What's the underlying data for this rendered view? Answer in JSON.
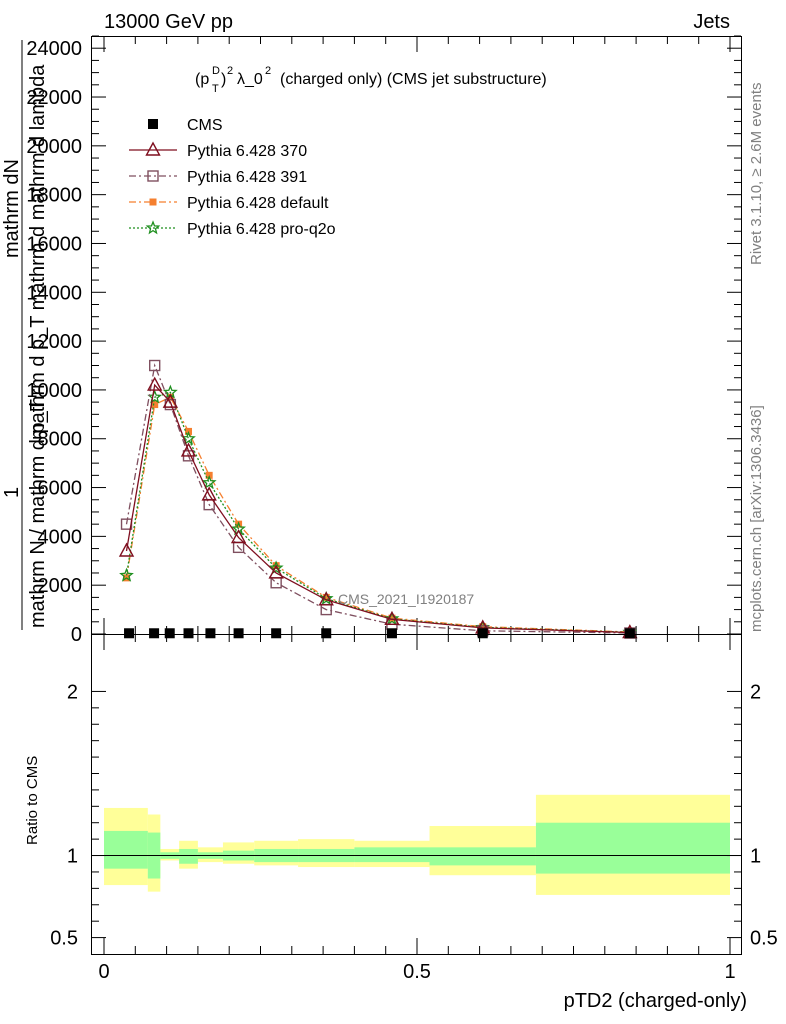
{
  "header": {
    "left": "13000 GeV pp",
    "right": "Jets"
  },
  "title_main": "(charged only) (CMS jet substructure)",
  "side_labels": {
    "rivet": "Rivet 3.1.10, ≥ 2.6M events",
    "mcplots": "mcplots.cern.ch [arXiv:1306.3436]"
  },
  "watermark": "CMS_2021_I1920187",
  "ylabel_main": {
    "numerator": "mathrm dN",
    "denominator": "mathrm d p_T mathrm d mathrm d lambda",
    "prefix": "1",
    "prefix_denominator": "mathrm N / mathrm d p_T",
    "fragments": [
      "mathrm d^2N",
      "mathrm d p_T mathrm d lambda"
    ]
  },
  "xlabel": "pTD2 (charged-only)",
  "ylabel_ratio": "Ratio to CMS",
  "colors": {
    "p370": "#7f0f1f",
    "p391": "#7f4f5f",
    "default": "#f57f2f",
    "proq2o": "#1f8f1f",
    "band_inner": "#99ff99",
    "band_outer": "#ffff99"
  },
  "chart_data": [
    {
      "type": "line",
      "panel": "main",
      "x_range": [
        0,
        1
      ],
      "ylim": [
        0,
        24500
      ],
      "y_ticks": [
        0,
        2000,
        4000,
        6000,
        8000,
        10000,
        12000,
        14000,
        16000,
        18000,
        20000,
        22000,
        24000
      ],
      "y_tick_labels": [
        "0",
        "2000",
        "4000",
        "6000",
        "8000",
        "10000",
        "12000",
        "14000",
        "16000",
        "18000",
        "20000",
        "22000",
        "24000"
      ],
      "legend_position": "top-left",
      "legend": [
        "CMS",
        "Pythia 6.428 370",
        "Pythia 6.428 391",
        "Pythia 6.428 default",
        "Pythia 6.428 pro-q2o"
      ],
      "cms_x": [
        0.04,
        0.08,
        0.105,
        0.135,
        0.17,
        0.215,
        0.275,
        0.355,
        0.46,
        0.605,
        0.84
      ],
      "cms_values": [
        30,
        30,
        30,
        30,
        30,
        30,
        30,
        30,
        30,
        30,
        30
      ],
      "series": [
        {
          "name": "Pythia 6.428 370",
          "x": [
            0.036,
            0.081,
            0.106,
            0.135,
            0.168,
            0.215,
            0.275,
            0.355,
            0.46,
            0.605,
            0.84
          ],
          "values": [
            3400,
            10200,
            9500,
            7500,
            5700,
            3950,
            2500,
            1400,
            600,
            250,
            60
          ]
        },
        {
          "name": "Pythia 6.428 391",
          "x": [
            0.036,
            0.081,
            0.106,
            0.135,
            0.168,
            0.215,
            0.275,
            0.355,
            0.46,
            0.605,
            0.84
          ],
          "values": [
            4500,
            11000,
            9400,
            7300,
            5300,
            3550,
            2100,
            1000,
            400,
            130,
            40
          ]
        },
        {
          "name": "Pythia 6.428 default",
          "x": [
            0.036,
            0.081,
            0.106,
            0.135,
            0.168,
            0.215,
            0.275,
            0.355,
            0.46,
            0.605,
            0.84
          ],
          "values": [
            2300,
            9400,
            9700,
            8300,
            6500,
            4500,
            2800,
            1500,
            650,
            300,
            80
          ]
        },
        {
          "name": "Pythia 6.428 pro-q2o",
          "x": [
            0.036,
            0.081,
            0.106,
            0.135,
            0.168,
            0.215,
            0.275,
            0.355,
            0.46,
            0.605,
            0.84
          ],
          "values": [
            2400,
            9700,
            9900,
            8000,
            6200,
            4300,
            2700,
            1450,
            620,
            270,
            70
          ]
        }
      ]
    },
    {
      "type": "area",
      "panel": "ratio",
      "x_range": [
        0,
        1
      ],
      "ylim": [
        0.4,
        2.35
      ],
      "y_ticks": [
        0.5,
        1,
        2
      ],
      "y_tick_labels": [
        "0.5",
        "1",
        "2"
      ],
      "x_ticks": [
        0,
        0.5,
        1
      ],
      "x_tick_labels": [
        "0",
        "0.5",
        "1"
      ],
      "bins": [
        {
          "x0": 0.0,
          "x1": 0.07,
          "inner": [
            0.92,
            1.15
          ],
          "outer": [
            0.82,
            1.29
          ]
        },
        {
          "x0": 0.07,
          "x1": 0.09,
          "inner": [
            0.86,
            1.14
          ],
          "outer": [
            0.78,
            1.25
          ]
        },
        {
          "x0": 0.09,
          "x1": 0.12,
          "inner": [
            0.98,
            1.02
          ],
          "outer": [
            0.97,
            1.04
          ]
        },
        {
          "x0": 0.12,
          "x1": 0.15,
          "inner": [
            0.95,
            1.04
          ],
          "outer": [
            0.92,
            1.09
          ]
        },
        {
          "x0": 0.15,
          "x1": 0.19,
          "inner": [
            0.98,
            1.02
          ],
          "outer": [
            0.96,
            1.05
          ]
        },
        {
          "x0": 0.19,
          "x1": 0.24,
          "inner": [
            0.97,
            1.03
          ],
          "outer": [
            0.95,
            1.08
          ]
        },
        {
          "x0": 0.24,
          "x1": 0.31,
          "inner": [
            0.96,
            1.04
          ],
          "outer": [
            0.94,
            1.09
          ]
        },
        {
          "x0": 0.31,
          "x1": 0.4,
          "inner": [
            0.96,
            1.04
          ],
          "outer": [
            0.93,
            1.1
          ]
        },
        {
          "x0": 0.4,
          "x1": 0.52,
          "inner": [
            0.96,
            1.05
          ],
          "outer": [
            0.93,
            1.09
          ]
        },
        {
          "x0": 0.52,
          "x1": 0.69,
          "inner": [
            0.94,
            1.05
          ],
          "outer": [
            0.88,
            1.18
          ]
        },
        {
          "x0": 0.69,
          "x1": 1.0,
          "inner": [
            0.89,
            1.2
          ],
          "outer": [
            0.76,
            1.37
          ]
        }
      ]
    }
  ]
}
